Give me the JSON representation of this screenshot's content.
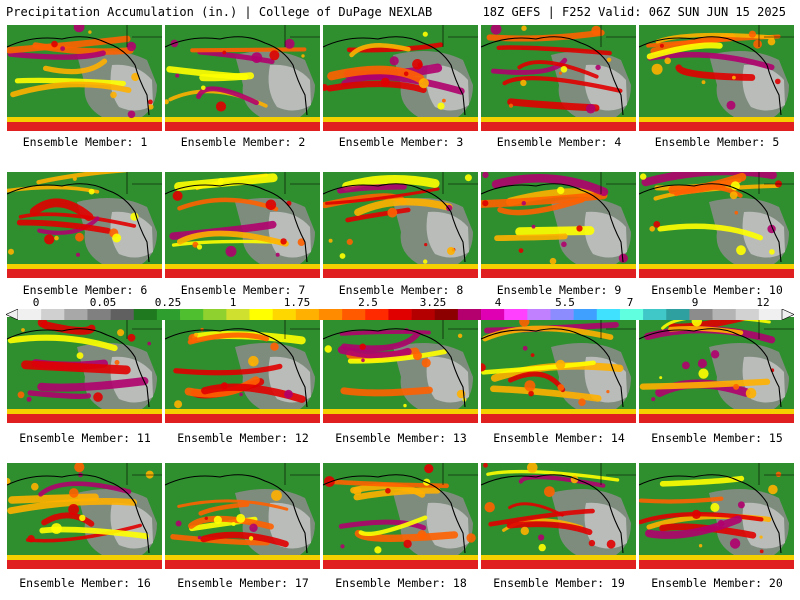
{
  "header": {
    "title": "Precipitation Accumulation (in.) | College of DuPage NEXLAB",
    "run_info": "18Z GEFS | F252 Valid: 06Z SUN JUN 15 2025"
  },
  "scale": {
    "labels": [
      "0",
      "0.05",
      "0.25",
      "1",
      "1.75",
      "2.5",
      "3.25",
      "4",
      "5.5",
      "7",
      "9",
      "12"
    ],
    "colors": [
      "#f0f0f0",
      "#d0d0d0",
      "#a8a8a8",
      "#808080",
      "#606060",
      "#1f7a1f",
      "#2e9e2e",
      "#4fbf2f",
      "#8fd22f",
      "#d0e02f",
      "#ffff00",
      "#ffd700",
      "#ffb000",
      "#ff8c00",
      "#ff5a00",
      "#ff2a00",
      "#e00000",
      "#b40000",
      "#8c0000",
      "#b4006e",
      "#e000b4",
      "#ff40ff",
      "#c080ff",
      "#8c8cff",
      "#40a0ff",
      "#40e0ff",
      "#60ffe0",
      "#40c8c8",
      "#2ea0a0",
      "#8c8c8c",
      "#b4b4b4",
      "#d2d2d2",
      "#f0f0f0"
    ]
  },
  "members": [
    {
      "label": "Ensemble Member: 1"
    },
    {
      "label": "Ensemble Member: 2"
    },
    {
      "label": "Ensemble Member: 3"
    },
    {
      "label": "Ensemble Member: 4"
    },
    {
      "label": "Ensemble Member: 5"
    },
    {
      "label": "Ensemble Member: 6"
    },
    {
      "label": "Ensemble Member: 7"
    },
    {
      "label": "Ensemble Member: 8"
    },
    {
      "label": "Ensemble Member: 9"
    },
    {
      "label": "Ensemble Member: 10"
    },
    {
      "label": "Ensemble Member: 11"
    },
    {
      "label": "Ensemble Member: 12"
    },
    {
      "label": "Ensemble Member: 13"
    },
    {
      "label": "Ensemble Member: 14"
    },
    {
      "label": "Ensemble Member: 15"
    },
    {
      "label": "Ensemble Member: 16"
    },
    {
      "label": "Ensemble Member: 17"
    },
    {
      "label": "Ensemble Member: 18"
    },
    {
      "label": "Ensemble Member: 19"
    },
    {
      "label": "Ensemble Member: 20"
    }
  ]
}
